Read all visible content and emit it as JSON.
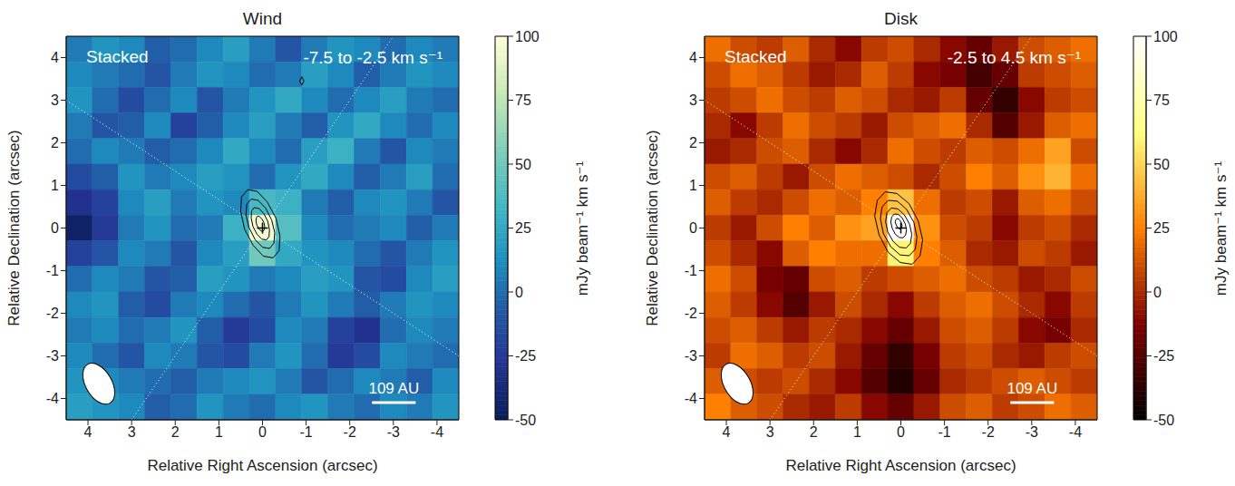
{
  "chart_data": [
    {
      "type": "heatmap",
      "title": "Wind",
      "annotations": [
        "Stacked",
        "-7.5 to -2.5 km s⁻¹"
      ],
      "x_label": "Relative Right Ascension (arcsec)",
      "y_label": "Relative Declination (arcsec)",
      "xlim": [
        4.5,
        -4.5
      ],
      "ylim": [
        -4.5,
        4.5
      ],
      "xticks": [
        4,
        3,
        2,
        1,
        0,
        -1,
        -2,
        -3,
        -4
      ],
      "yticks": [
        -4,
        -3,
        -2,
        -1,
        0,
        1,
        2,
        3,
        4
      ],
      "colorbar": {
        "label": "mJy beam⁻¹ km s⁻¹",
        "range": [
          -50,
          100
        ],
        "ticks": [
          -50,
          -25,
          0,
          25,
          50,
          75,
          100
        ]
      },
      "x": [
        4.2,
        3.6,
        3.0,
        2.4,
        1.8,
        1.2,
        0.6,
        0.0,
        -0.6,
        -1.2,
        -1.8,
        -2.4,
        -3.0,
        -3.6,
        -4.2
      ],
      "y": [
        4.2,
        3.6,
        3.0,
        2.4,
        1.8,
        1.2,
        0.6,
        0.0,
        -0.6,
        -1.2,
        -1.8,
        -2.4,
        -3.0,
        -3.6,
        -4.2
      ],
      "cells": [
        [
          5,
          15,
          10,
          -5,
          0,
          10,
          20,
          5,
          -10,
          5,
          15,
          10,
          0,
          10,
          5
        ],
        [
          10,
          5,
          0,
          -10,
          5,
          15,
          10,
          0,
          5,
          20,
          10,
          -5,
          5,
          15,
          10
        ],
        [
          15,
          0,
          -15,
          0,
          10,
          -10,
          5,
          15,
          25,
          10,
          0,
          10,
          20,
          5,
          0
        ],
        [
          5,
          -10,
          -5,
          10,
          -20,
          -5,
          10,
          20,
          5,
          -5,
          15,
          25,
          10,
          0,
          10
        ],
        [
          0,
          10,
          5,
          -5,
          0,
          10,
          25,
          10,
          0,
          20,
          30,
          5,
          -10,
          10,
          5
        ],
        [
          -15,
          -5,
          15,
          5,
          10,
          20,
          15,
          0,
          15,
          25,
          10,
          -5,
          5,
          20,
          0
        ],
        [
          -30,
          -20,
          10,
          20,
          5,
          15,
          10,
          35,
          30,
          5,
          -5,
          10,
          15,
          5,
          -10
        ],
        [
          -45,
          -25,
          5,
          15,
          0,
          5,
          30,
          95,
          40,
          10,
          0,
          5,
          10,
          -5,
          5
        ],
        [
          -20,
          -10,
          10,
          5,
          -10,
          10,
          20,
          50,
          25,
          15,
          10,
          0,
          -10,
          5,
          15
        ],
        [
          0,
          10,
          5,
          -10,
          -5,
          20,
          15,
          5,
          10,
          20,
          15,
          -10,
          -15,
          10,
          20
        ],
        [
          10,
          15,
          -5,
          -15,
          5,
          10,
          0,
          -10,
          5,
          15,
          5,
          -5,
          5,
          15,
          10
        ],
        [
          5,
          10,
          0,
          5,
          15,
          -5,
          -25,
          -15,
          10,
          5,
          -20,
          -30,
          0,
          10,
          5
        ],
        [
          10,
          0,
          -10,
          10,
          5,
          -10,
          -15,
          5,
          15,
          0,
          -25,
          -15,
          10,
          5,
          0
        ],
        [
          15,
          10,
          5,
          0,
          -5,
          5,
          10,
          15,
          5,
          -10,
          0,
          10,
          5,
          -5,
          10
        ],
        [
          20,
          15,
          10,
          -5,
          0,
          15,
          5,
          0,
          10,
          15,
          5,
          0,
          10,
          5,
          15
        ]
      ],
      "contours": [
        {
          "x": [
            0.34,
            0.48,
            0.5,
            0.41,
            0.21,
            -0.02,
            -0.24,
            -0.38,
            -0.4,
            -0.31,
            -0.11,
            0.12
          ],
          "y": [
            0.9,
            0.73,
            0.39,
            -0.03,
            -0.41,
            -0.66,
            -0.7,
            -0.53,
            -0.19,
            0.23,
            0.61,
            0.86
          ]
        },
        {
          "x": [
            0.26,
            0.36,
            0.38,
            0.31,
            0.17,
            0.0,
            -0.16,
            -0.26,
            -0.28,
            -0.21,
            -0.07,
            0.1
          ],
          "y": [
            0.68,
            0.56,
            0.31,
            0.01,
            -0.27,
            -0.45,
            -0.48,
            -0.36,
            -0.11,
            0.19,
            0.47,
            0.65
          ]
        },
        {
          "x": [
            0.19,
            0.25,
            0.26,
            0.22,
            0.13,
            0.02,
            -0.09,
            -0.15,
            -0.16,
            -0.12,
            -0.03,
            0.08
          ],
          "y": [
            0.48,
            0.4,
            0.24,
            0.04,
            -0.14,
            -0.26,
            -0.28,
            -0.2,
            -0.04,
            0.16,
            0.34,
            0.46
          ]
        },
        {
          "x": [
            0.11,
            0.14,
            0.15,
            0.13,
            0.09,
            0.03,
            -0.01,
            -0.04,
            -0.05,
            -0.03,
            0.01,
            0.07
          ],
          "y": [
            0.28,
            0.24,
            0.16,
            0.07,
            -0.01,
            -0.07,
            -0.08,
            -0.04,
            0.04,
            0.13,
            0.21,
            0.27
          ]
        },
        {
          "x": [
            -0.85,
            -0.9,
            -0.95,
            -0.9
          ],
          "y": [
            3.45,
            3.55,
            3.45,
            3.35
          ]
        }
      ],
      "lines": [
        {
          "x": [
            4.5,
            -4.5
          ],
          "y": [
            3,
            -3
          ]
        },
        {
          "x": [
            3,
            -3
          ],
          "y": [
            -4.5,
            4.5
          ]
        }
      ],
      "source_position": {
        "x": 0,
        "y": 0
      },
      "beam": {
        "major": 1.05,
        "minor": 0.6,
        "pa": 30
      },
      "scale_bar": {
        "label": "109 AU",
        "length": 1
      }
    },
    {
      "type": "heatmap",
      "title": "Disk",
      "annotations": [
        "Stacked",
        "-2.5 to 4.5 km s⁻¹"
      ],
      "x_label": "Relative Right Ascension (arcsec)",
      "y_label": "Relative Declination (arcsec)",
      "xlim": [
        4.5,
        -4.5
      ],
      "ylim": [
        -4.5,
        4.5
      ],
      "xticks": [
        4,
        3,
        2,
        1,
        0,
        -1,
        -2,
        -3,
        -4
      ],
      "yticks": [
        -4,
        -3,
        -2,
        -1,
        0,
        1,
        2,
        3,
        4
      ],
      "colorbar": {
        "label": "mJy beam⁻¹ km s⁻¹",
        "range": [
          -50,
          100
        ],
        "ticks": [
          -50,
          -25,
          0,
          25,
          50,
          75,
          100
        ]
      },
      "x": [
        4.2,
        3.6,
        3.0,
        2.4,
        1.8,
        1.2,
        0.6,
        0.0,
        -0.6,
        -1.2,
        -1.8,
        -2.4,
        -3.0,
        -3.6,
        -4.2
      ],
      "y": [
        4.2,
        3.6,
        3.0,
        2.4,
        1.8,
        1.2,
        0.6,
        0.0,
        -0.6,
        -1.2,
        -1.8,
        -2.4,
        -3.0,
        -3.6,
        -4.2
      ],
      "cells": [
        [
          20,
          10,
          5,
          15,
          0,
          -10,
          5,
          10,
          0,
          -10,
          -20,
          -5,
          10,
          15,
          20
        ],
        [
          10,
          20,
          15,
          5,
          -5,
          0,
          15,
          5,
          -10,
          -15,
          -30,
          -20,
          5,
          10,
          15
        ],
        [
          5,
          10,
          20,
          10,
          5,
          15,
          10,
          0,
          -5,
          5,
          -20,
          -35,
          -10,
          5,
          10
        ],
        [
          0,
          -10,
          5,
          20,
          10,
          5,
          -5,
          10,
          15,
          20,
          0,
          -25,
          -5,
          15,
          20
        ],
        [
          -5,
          0,
          10,
          15,
          0,
          -10,
          0,
          20,
          10,
          5,
          15,
          10,
          20,
          35,
          10
        ],
        [
          10,
          15,
          5,
          -5,
          10,
          20,
          15,
          10,
          0,
          10,
          25,
          15,
          30,
          40,
          20
        ],
        [
          15,
          5,
          0,
          10,
          20,
          15,
          25,
          45,
          20,
          5,
          10,
          -5,
          15,
          20,
          10
        ],
        [
          5,
          -5,
          10,
          25,
          15,
          30,
          35,
          100,
          30,
          10,
          5,
          -10,
          5,
          10,
          0
        ],
        [
          10,
          0,
          -10,
          15,
          25,
          20,
          20,
          60,
          25,
          15,
          0,
          -5,
          10,
          5,
          -5
        ],
        [
          20,
          10,
          -15,
          -20,
          10,
          15,
          5,
          10,
          15,
          20,
          10,
          5,
          -5,
          0,
          10
        ],
        [
          15,
          5,
          -10,
          -25,
          -5,
          10,
          0,
          -10,
          5,
          15,
          20,
          10,
          0,
          -10,
          5
        ],
        [
          10,
          15,
          5,
          -5,
          5,
          0,
          -10,
          -20,
          -5,
          10,
          15,
          5,
          -10,
          -15,
          0
        ],
        [
          5,
          20,
          15,
          5,
          10,
          -5,
          -20,
          -35,
          -15,
          5,
          10,
          0,
          -5,
          5,
          10
        ],
        [
          15,
          10,
          5,
          10,
          0,
          -10,
          -25,
          -40,
          -20,
          0,
          5,
          10,
          15,
          10,
          5
        ],
        [
          25,
          15,
          10,
          0,
          -5,
          5,
          -10,
          -20,
          -5,
          10,
          15,
          5,
          10,
          20,
          15
        ]
      ],
      "contours": [
        {
          "x": [
            0.36,
            0.54,
            0.6,
            0.5,
            0.29,
            0.01,
            -0.26,
            -0.44,
            -0.5,
            -0.4,
            -0.19,
            0.09
          ],
          "y": [
            0.85,
            0.65,
            0.28,
            -0.16,
            -0.57,
            -0.81,
            -0.85,
            -0.65,
            -0.28,
            0.16,
            0.57,
            0.81
          ]
        },
        {
          "x": [
            0.29,
            0.43,
            0.47,
            0.4,
            0.23,
            0.02,
            -0.19,
            -0.33,
            -0.37,
            -0.3,
            -0.13,
            0.08
          ],
          "y": [
            0.65,
            0.5,
            0.22,
            -0.13,
            -0.44,
            -0.63,
            -0.65,
            -0.5,
            -0.22,
            0.13,
            0.44,
            0.63
          ]
        },
        {
          "x": [
            0.22,
            0.32,
            0.35,
            0.3,
            0.18,
            0.03,
            -0.12,
            -0.22,
            -0.25,
            -0.2,
            -0.08,
            0.07
          ],
          "y": [
            0.47,
            0.36,
            0.15,
            -0.09,
            -0.31,
            -0.45,
            -0.47,
            -0.36,
            -0.15,
            0.09,
            0.31,
            0.45
          ]
        },
        {
          "x": [
            0.15,
            0.21,
            0.23,
            0.2,
            0.13,
            0.04,
            -0.05,
            -0.11,
            -0.13,
            -0.1,
            -0.03,
            0.06
          ],
          "y": [
            0.33,
            0.26,
            0.14,
            0.0,
            -0.14,
            -0.22,
            -0.23,
            -0.16,
            -0.04,
            0.1,
            0.24,
            0.32
          ]
        },
        {
          "x": [
            0.09,
            0.12,
            0.13,
            0.11,
            0.08,
            0.05,
            0.01,
            -0.02,
            -0.03,
            -0.01,
            0.02,
            0.05
          ],
          "y": [
            0.22,
            0.19,
            0.14,
            0.08,
            0.02,
            -0.01,
            -0.02,
            0.01,
            0.06,
            0.12,
            0.18,
            0.21
          ]
        }
      ],
      "lines": [
        {
          "x": [
            4.5,
            -4.5
          ],
          "y": [
            3,
            -3
          ]
        },
        {
          "x": [
            3,
            -3
          ],
          "y": [
            -4.5,
            4.5
          ]
        }
      ],
      "source_position": {
        "x": 0,
        "y": 0
      },
      "beam": {
        "major": 1.05,
        "minor": 0.6,
        "pa": 30
      },
      "scale_bar": {
        "label": "109 AU",
        "length": 1
      }
    }
  ]
}
